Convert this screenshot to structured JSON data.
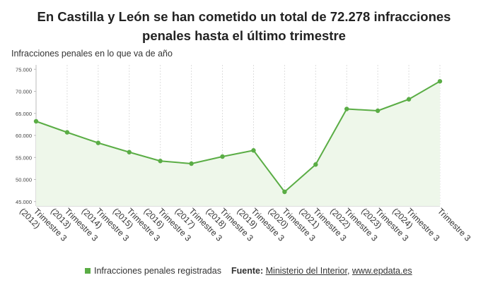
{
  "title": "En Castilla y León se han cometido un total de 72.278 infracciones penales hasta el último trimestre",
  "subtitle": "Infracciones penales en lo que va de año",
  "legend_label": "Infracciones penales registradas",
  "source": {
    "prefix": "Fuente:",
    "org": "Ministerio del Interior",
    "sep": ", ",
    "site": "www.epdata.es"
  },
  "colors": {
    "line": "#5aad45",
    "fill": "#eef7ea",
    "grid": "#dddddd"
  },
  "chart_data": {
    "type": "area",
    "x": [
      "Trimestre 3 (2012)",
      "Trimestre 3 (2013)",
      "Trimestre 3 (2014)",
      "Trimestre 3 (2015)",
      "Trimestre 3 (2016)",
      "Trimestre 3 (2017)",
      "Trimestre 3 (2018)",
      "Trimestre 3 (2019)",
      "Trimestre 3 (2020)",
      "Trimestre 3 (2021)",
      "Trimestre 3 (2022)",
      "Trimestre 3 (2023)",
      "Trimestre 3 (2024)",
      "Trimestre 3"
    ],
    "series": [
      {
        "name": "Infracciones penales registradas",
        "values": [
          63200,
          60700,
          58300,
          56200,
          54200,
          53600,
          55200,
          56600,
          47200,
          53400,
          66000,
          65600,
          68200,
          72278
        ]
      }
    ],
    "ylim": [
      44000,
      76000
    ],
    "yticks": [
      "45.000",
      "50.000",
      "55.000",
      "60.000",
      "65.000",
      "70.000",
      "75.000"
    ],
    "ytick_values": [
      45000,
      50000,
      55000,
      60000,
      65000,
      70000,
      75000
    ],
    "grid": "vertical"
  }
}
